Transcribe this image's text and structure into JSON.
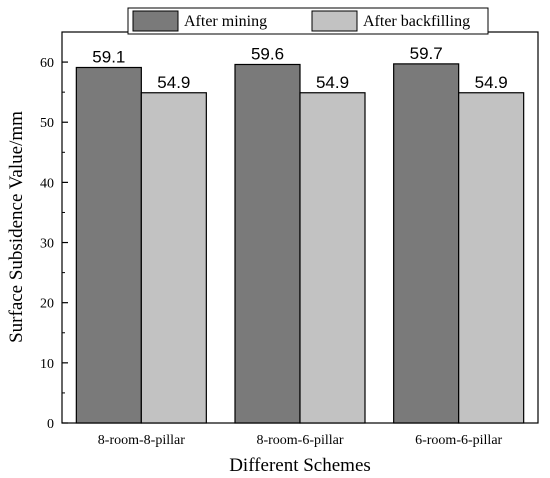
{
  "chart_data": {
    "type": "bar",
    "categories": [
      "8-room-8-pillar",
      "8-room-6-pillar",
      "6-room-6-pillar"
    ],
    "series": [
      {
        "name": "After mining",
        "values": [
          59.1,
          59.6,
          59.7
        ],
        "color": "#7a7a7a"
      },
      {
        "name": "After backfilling",
        "values": [
          54.9,
          54.9,
          54.9
        ],
        "color": "#c2c2c2"
      }
    ],
    "data_labels": [
      [
        "59.1",
        "59.6",
        "59.7"
      ],
      [
        "54.9",
        "54.9",
        "54.9"
      ]
    ],
    "xlabel": "Different Schemes",
    "ylabel": "Surface Subsidence Value/mm",
    "ylim": [
      0,
      65
    ],
    "yticks": [
      0,
      10,
      20,
      30,
      40,
      50,
      60
    ],
    "grid": false,
    "legend_position": "top"
  }
}
